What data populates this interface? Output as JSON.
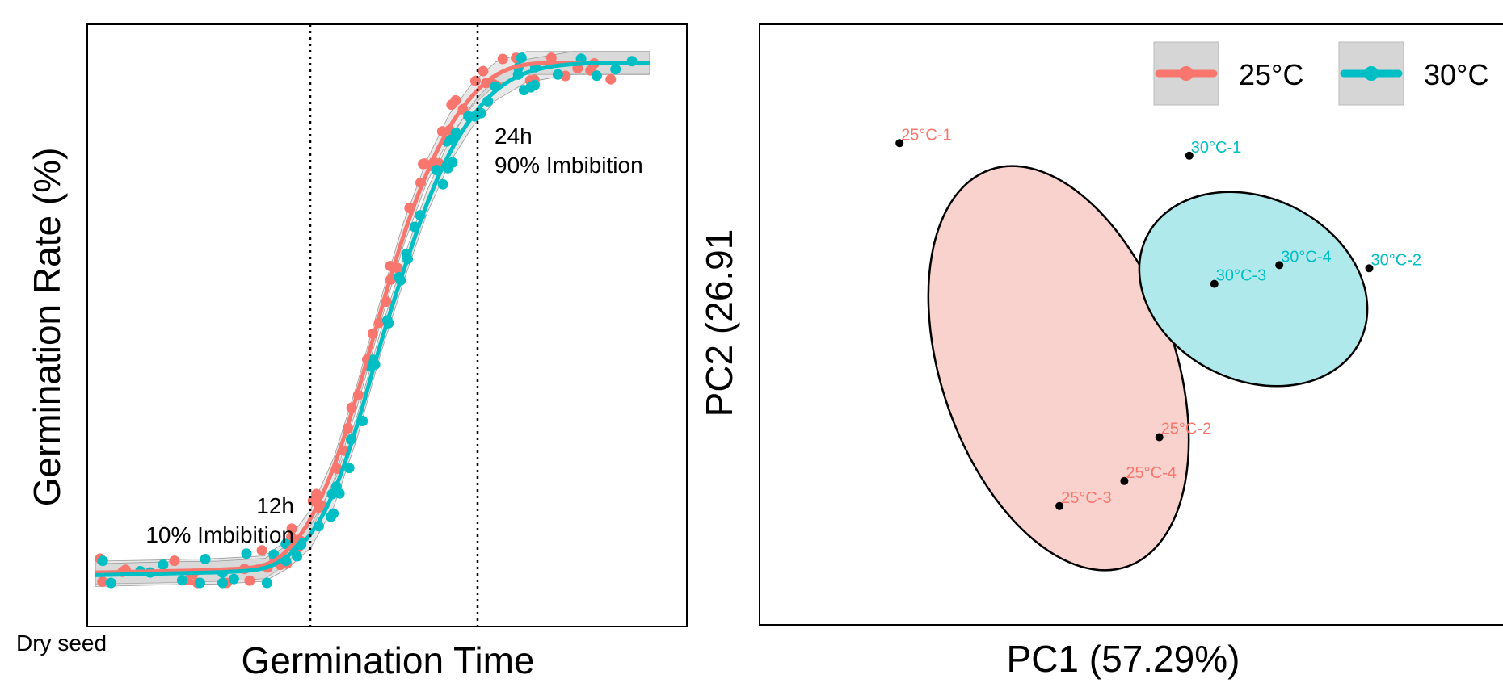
{
  "colors": {
    "c25": "#F8766D",
    "c30": "#00BFC4",
    "fill25": "#F9D1CD",
    "fill30": "#B0E9EB"
  },
  "chart_data": [
    {
      "type": "line",
      "xlabel": "Germination Time",
      "ylabel": "Germination Rate (%)",
      "x_start_label": "Dry seed",
      "annotations": [
        {
          "line1": "12h",
          "line2": "10% Imbibition"
        },
        {
          "line1": "24h",
          "line2": "90% Imbibition"
        }
      ],
      "series": [
        {
          "name": "25°C",
          "color": "#F8766D",
          "x": [
            0,
            4,
            8,
            11,
            12.5,
            14,
            15.5,
            17,
            18.5,
            20,
            21.5,
            23,
            24.5,
            26,
            28,
            31,
            36
          ],
          "y": [
            2,
            2.2,
            2.5,
            3,
            6,
            12,
            22,
            36,
            52,
            67,
            79,
            88,
            94,
            98,
            100,
            100,
            100
          ]
        },
        {
          "name": "30°C",
          "color": "#00BFC4",
          "x": [
            0,
            4,
            8,
            11,
            12.5,
            14,
            15.5,
            17,
            18.5,
            20,
            21.5,
            23,
            24.5,
            26,
            28,
            31,
            36
          ],
          "y": [
            1.5,
            1.8,
            2,
            2.5,
            5,
            9,
            17,
            30,
            46,
            60,
            73,
            83,
            90,
            95,
            98.5,
            100,
            100
          ]
        }
      ]
    },
    {
      "type": "scatter",
      "xlabel": "PC1 (57.29%)",
      "ylabel": "PC2 (26.91",
      "legend": {
        "placement": "top-right",
        "entries": [
          "25°C",
          "30°C"
        ]
      },
      "points": [
        {
          "label": "25°C-1",
          "group": "25°C",
          "x": -4.6,
          "y": 2.7
        },
        {
          "label": "25°C-2",
          "group": "25°C",
          "x": -2.0,
          "y": -2.0
        },
        {
          "label": "25°C-3",
          "group": "25°C",
          "x": -3.0,
          "y": -3.1
        },
        {
          "label": "25°C-4",
          "group": "25°C",
          "x": -2.35,
          "y": -2.7
        },
        {
          "label": "30°C-1",
          "group": "30°C",
          "x": -1.7,
          "y": 2.5
        },
        {
          "label": "30°C-2",
          "group": "30°C",
          "x": 0.1,
          "y": 0.7
        },
        {
          "label": "30°C-3",
          "group": "30°C",
          "x": -1.45,
          "y": 0.45
        },
        {
          "label": "30°C-4",
          "group": "30°C",
          "x": -0.8,
          "y": 0.75
        }
      ]
    }
  ]
}
